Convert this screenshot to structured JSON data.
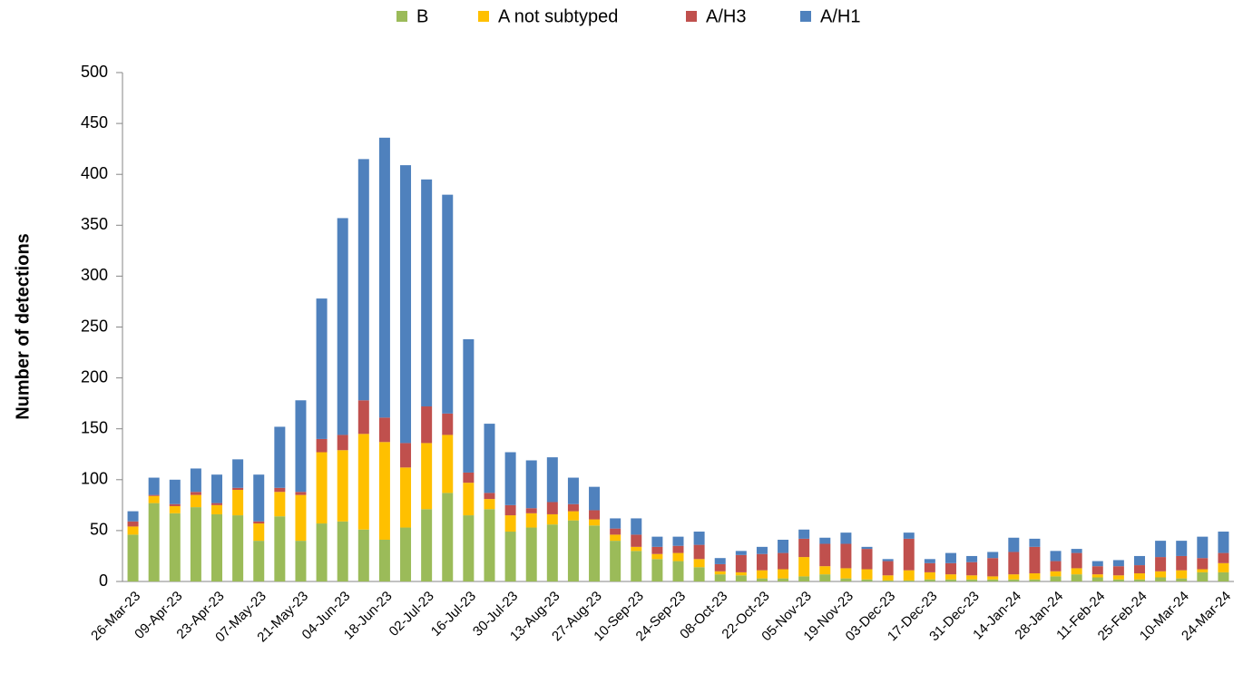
{
  "chart_data": {
    "type": "stacked_bar",
    "y_label": "Number of detections",
    "categories": [
      "26-Mar-23",
      null,
      "09-Apr-23",
      null,
      "23-Apr-23",
      null,
      "07-May-23",
      null,
      "21-May-23",
      null,
      "04-Jun-23",
      null,
      "18-Jun-23",
      null,
      "02-Jul-23",
      null,
      "16-Jul-23",
      null,
      "30-Jul-23",
      null,
      "13-Aug-23",
      null,
      "27-Aug-23",
      null,
      "10-Sep-23",
      null,
      "24-Sep-23",
      null,
      "08-Oct-23",
      null,
      "22-Oct-23",
      null,
      "05-Nov-23",
      null,
      "19-Nov-23",
      null,
      "03-Dec-23",
      null,
      "17-Dec-23",
      null,
      "31-Dec-23",
      null,
      "14-Jan-24",
      null,
      "28-Jan-24",
      null,
      "11-Feb-24",
      null,
      "25-Feb-24",
      null,
      "10-Mar-24",
      null,
      "24-Mar-24"
    ],
    "series": [
      {
        "name": "B",
        "color": "#9bbb59",
        "values": [
          46,
          77,
          67,
          73,
          66,
          65,
          40,
          64,
          40,
          57,
          59,
          51,
          41,
          53,
          71,
          87,
          65,
          71,
          49,
          53,
          56,
          60,
          55,
          40,
          30,
          22,
          20,
          14,
          7,
          6,
          3,
          3,
          5,
          7,
          3,
          2,
          1,
          1,
          2,
          2,
          2,
          2,
          2,
          2,
          5,
          7,
          4,
          2,
          2,
          4,
          3,
          9,
          9
        ]
      },
      {
        "name": "A not subtyped",
        "color": "#ffc000",
        "values": [
          8,
          7,
          7,
          12,
          9,
          25,
          17,
          24,
          45,
          70,
          70,
          94,
          96,
          59,
          65,
          57,
          32,
          10,
          16,
          14,
          10,
          9,
          6,
          6,
          4,
          5,
          8,
          8,
          3,
          3,
          8,
          9,
          19,
          8,
          10,
          10,
          5,
          10,
          7,
          5,
          4,
          3,
          5,
          6,
          5,
          6,
          3,
          4,
          6,
          6,
          8,
          3,
          9
        ]
      },
      {
        "name": "A/H3",
        "color": "#c0504d",
        "values": [
          5,
          1,
          2,
          3,
          2,
          2,
          2,
          4,
          3,
          13,
          15,
          33,
          24,
          24,
          36,
          21,
          10,
          6,
          10,
          5,
          12,
          7,
          9,
          6,
          12,
          7,
          7,
          14,
          7,
          17,
          16,
          16,
          18,
          22,
          24,
          20,
          14,
          31,
          9,
          11,
          13,
          18,
          22,
          26,
          10,
          15,
          8,
          9,
          8,
          14,
          14,
          11,
          10
        ]
      },
      {
        "name": "A/H1",
        "color": "#4f81bd",
        "values": [
          10,
          17,
          24,
          23,
          28,
          28,
          46,
          60,
          90,
          138,
          213,
          237,
          275,
          273,
          223,
          215,
          131,
          68,
          52,
          47,
          44,
          26,
          23,
          10,
          16,
          10,
          9,
          13,
          6,
          4,
          7,
          13,
          9,
          6,
          11,
          2,
          2,
          6,
          4,
          10,
          6,
          6,
          14,
          8,
          10,
          4,
          5,
          6,
          9,
          16,
          15,
          21,
          21
        ]
      }
    ],
    "ylim": [
      0,
      500
    ],
    "yticks": [
      0,
      50,
      100,
      150,
      200,
      250,
      300,
      350,
      400,
      450,
      500
    ],
    "grid": false
  }
}
